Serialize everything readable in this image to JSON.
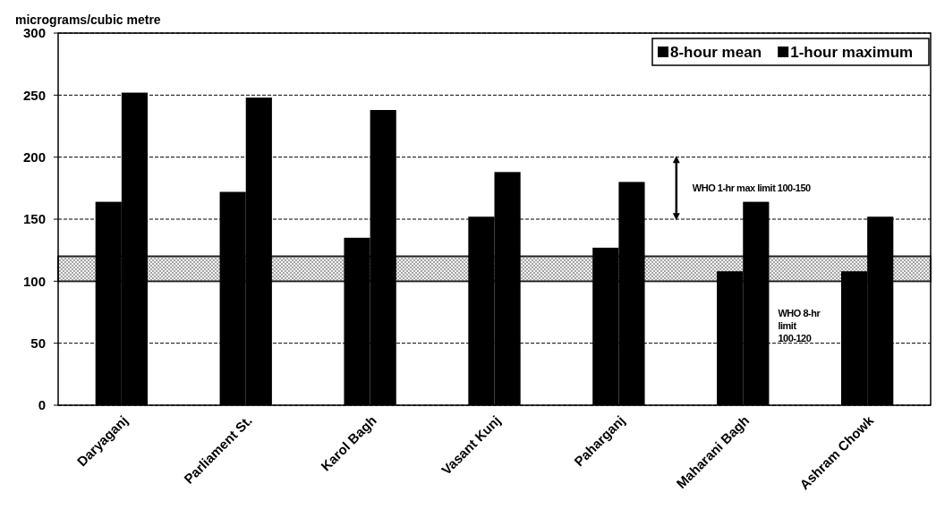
{
  "chart_data": {
    "type": "bar",
    "ylabel": "micrograms/cubic metre",
    "categories": [
      "Daryaganj",
      "Parliament St.",
      "Karol Bagh",
      "Vasant Kunj",
      "Paharganj",
      "Maharani Bagh",
      "Ashram Chowk"
    ],
    "series": [
      {
        "name": "8-hour mean",
        "color": "#000000",
        "values": [
          164,
          172,
          135,
          152,
          127,
          108,
          108
        ]
      },
      {
        "name": "1-hour maximum",
        "color": "#000000",
        "values": [
          252,
          248,
          238,
          188,
          180,
          164,
          152
        ]
      }
    ],
    "ylim": [
      0,
      300
    ],
    "yticks": [
      0,
      50,
      100,
      150,
      200,
      250,
      300
    ],
    "grid": "y",
    "legend": "top right",
    "bands": [
      {
        "axis": "y",
        "from": 100,
        "to": 120,
        "label": "WHO 8-hr limit 100-120",
        "color": "#d9d9d9"
      }
    ],
    "annotations": [
      "WHO 1-hr max limit 100-150"
    ]
  }
}
